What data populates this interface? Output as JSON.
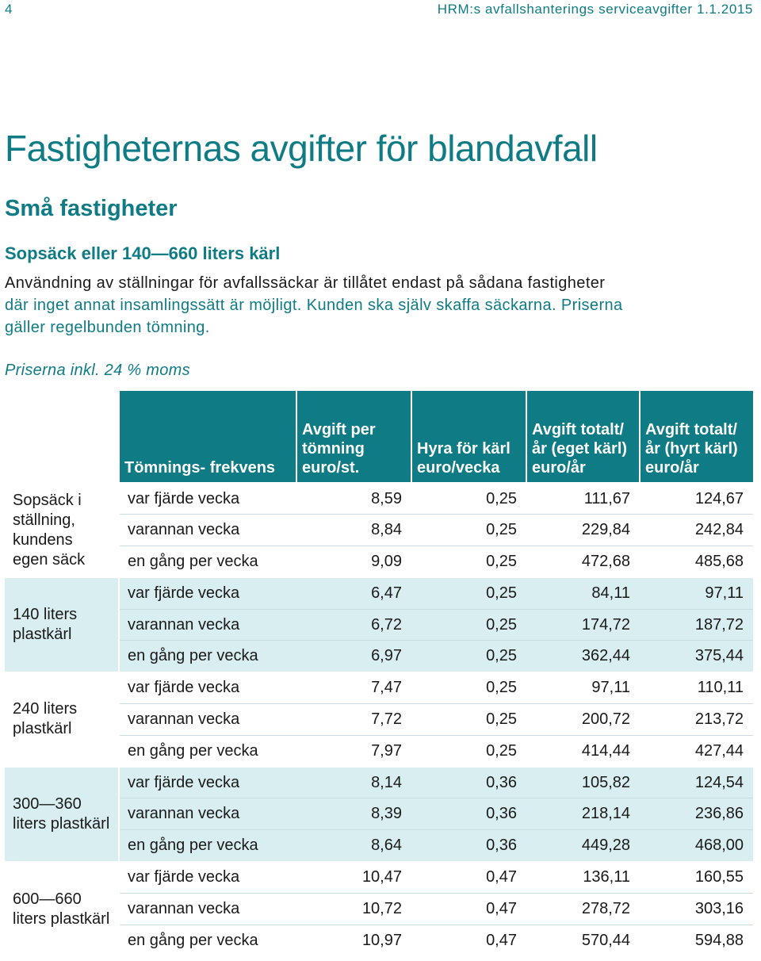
{
  "header": {
    "page_number": "4",
    "running_title": "HRM:s avfallshanterings serviceavgifter 1.1.2015"
  },
  "title": "Fastigheternas avgifter för blandavfall",
  "subtitle": "Små fastigheter",
  "section": {
    "heading": "Sopsäck eller 140—660 liters kärl",
    "intro_line1": "Användning av ställningar för avfallssäckar är tillåtet endast på sådana fastigheter",
    "intro_line2": "där inget annat insamlingssätt är möjligt. Kunden ska själv skaffa säckarna. Priserna",
    "intro_line3": "gäller regelbunden tömning.",
    "vat_note": "Priserna inkl. 24 % moms"
  },
  "table": {
    "headers": {
      "frequency": "Tömnings- frekvens",
      "fee_per_emptying": "Avgift per tömning euro/st.",
      "bin_rent": "Hyra för kärl euro/vecka",
      "total_own": "Avgift totalt/år (eget kärl) euro/år",
      "total_rented": "Avgift totalt/år (hyrt kärl) euro/år"
    },
    "groups": [
      {
        "label": "Sopsäck i ställning, kundens egen säck",
        "rows": [
          {
            "freq": "var fjärde vecka",
            "fee": "8,59",
            "rent": "0,25",
            "own": "111,67",
            "rented": "124,67"
          },
          {
            "freq": "varannan vecka",
            "fee": "8,84",
            "rent": "0,25",
            "own": "229,84",
            "rented": "242,84"
          },
          {
            "freq": "en gång per vecka",
            "fee": "9,09",
            "rent": "0,25",
            "own": "472,68",
            "rented": "485,68"
          }
        ]
      },
      {
        "label": "140 liters plastkärl",
        "rows": [
          {
            "freq": "var fjärde vecka",
            "fee": "6,47",
            "rent": "0,25",
            "own": "84,11",
            "rented": "97,11"
          },
          {
            "freq": "varannan vecka",
            "fee": "6,72",
            "rent": "0,25",
            "own": "174,72",
            "rented": "187,72"
          },
          {
            "freq": "en gång per vecka",
            "fee": "6,97",
            "rent": "0,25",
            "own": "362,44",
            "rented": "375,44"
          }
        ]
      },
      {
        "label": "240 liters plastkärl",
        "rows": [
          {
            "freq": "var fjärde vecka",
            "fee": "7,47",
            "rent": "0,25",
            "own": "97,11",
            "rented": "110,11"
          },
          {
            "freq": "varannan vecka",
            "fee": "7,72",
            "rent": "0,25",
            "own": "200,72",
            "rented": "213,72"
          },
          {
            "freq": "en gång per vecka",
            "fee": "7,97",
            "rent": "0,25",
            "own": "414,44",
            "rented": "427,44"
          }
        ]
      },
      {
        "label": "300—360 liters plastkärl",
        "rows": [
          {
            "freq": "var fjärde vecka",
            "fee": "8,14",
            "rent": "0,36",
            "own": "105,82",
            "rented": "124,54"
          },
          {
            "freq": "varannan vecka",
            "fee": "8,39",
            "rent": "0,36",
            "own": "218,14",
            "rented": "236,86"
          },
          {
            "freq": "en gång per vecka",
            "fee": "8,64",
            "rent": "0,36",
            "own": "449,28",
            "rented": "468,00"
          }
        ]
      },
      {
        "label": "600—660 liters plastkärl",
        "rows": [
          {
            "freq": "var fjärde vecka",
            "fee": "10,47",
            "rent": "0,47",
            "own": "136,11",
            "rented": "160,55"
          },
          {
            "freq": "varannan vecka",
            "fee": "10,72",
            "rent": "0,47",
            "own": "278,72",
            "rented": "303,16"
          },
          {
            "freq": "en gång per vecka",
            "fee": "10,97",
            "rent": "0,47",
            "own": "570,44",
            "rented": "594,88"
          }
        ]
      }
    ]
  },
  "colors": {
    "accent": "#0e7b85",
    "band": "#d9eef1"
  }
}
